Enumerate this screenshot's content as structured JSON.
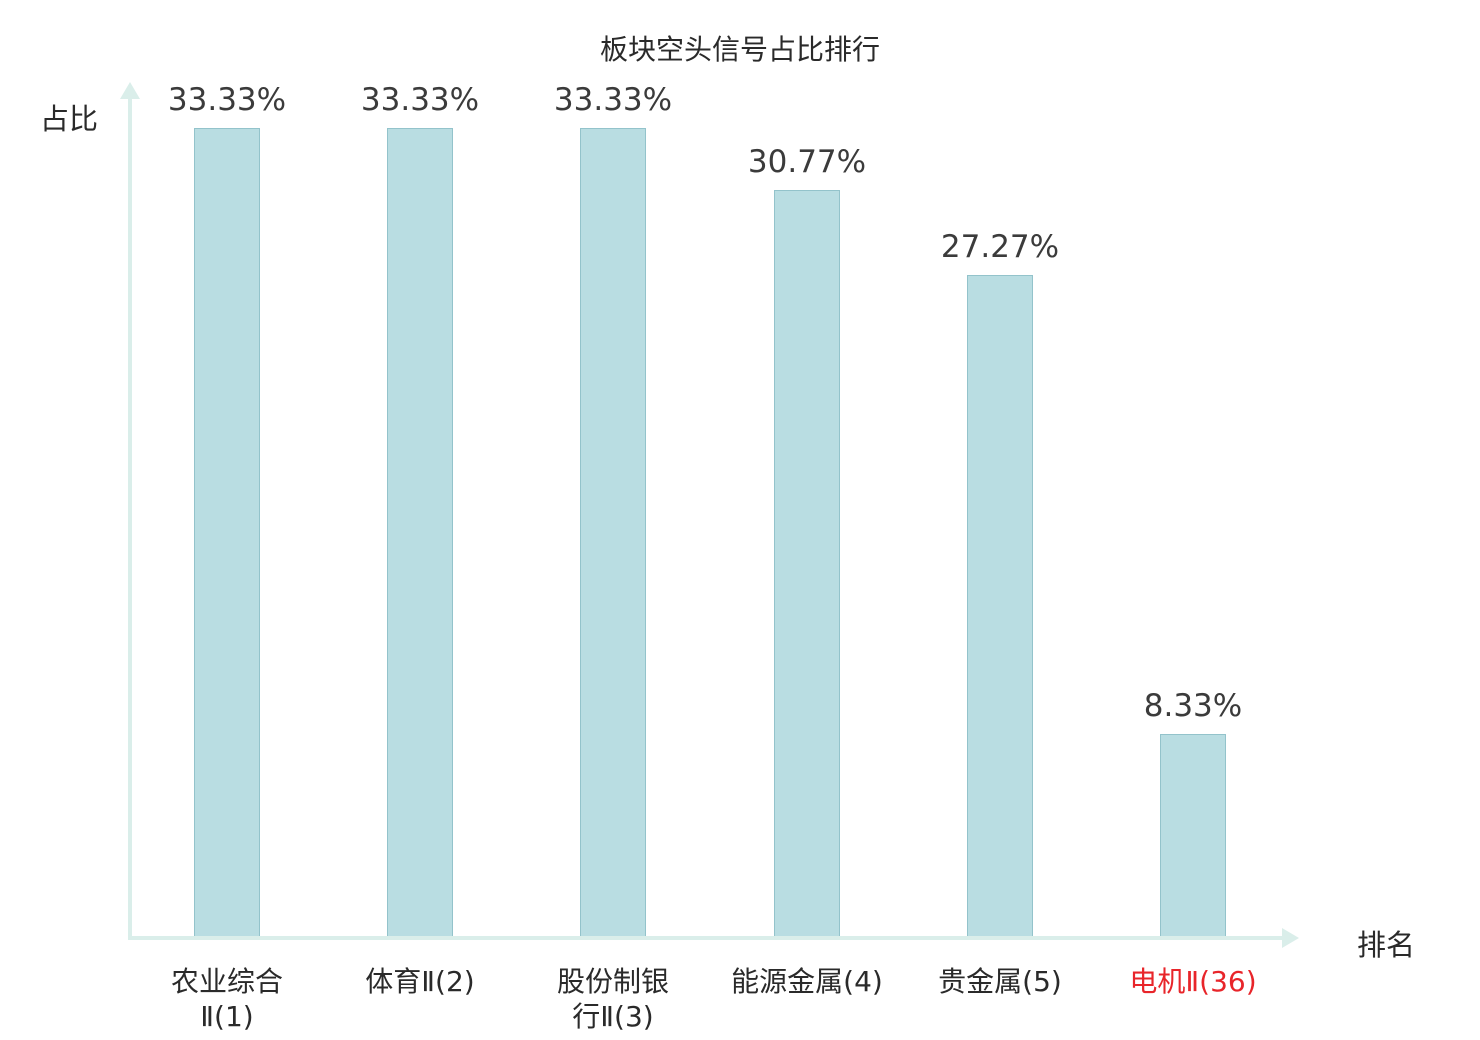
{
  "chart_data": {
    "type": "bar",
    "title": "板块空头信号占比排行",
    "ylabel": "占比",
    "xlabel": "排名",
    "categories": [
      "农业综合\nⅡ(1)",
      "体育Ⅱ(2)",
      "股份制银\n行Ⅱ(3)",
      "能源金属(4)",
      "贵金属(5)",
      "电机Ⅱ(36)"
    ],
    "values": [
      33.33,
      33.33,
      33.33,
      30.77,
      27.27,
      8.33
    ],
    "value_labels": [
      "33.33%",
      "33.33%",
      "33.33%",
      "30.77%",
      "27.27%",
      "8.33%"
    ],
    "highlight_index": 5,
    "ylim": [
      0,
      35
    ],
    "grid": false,
    "legend_position": "none",
    "colors": {
      "bar_fill": "#b9dde2",
      "bar_border": "#93c3cb",
      "axis": "#daeeea",
      "text": "#3b3b3b",
      "highlight_text": "#e8252a"
    }
  }
}
